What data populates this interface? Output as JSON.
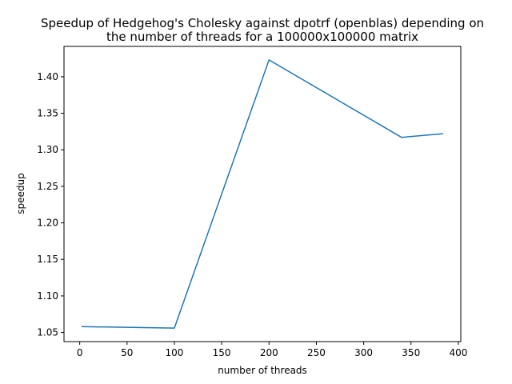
{
  "chart_data": {
    "type": "line",
    "title_lines": [
      "Speedup of Hedgehog's Cholesky against dpotrf (openblas) depending on",
      "the number of threads for a 100000x100000 matrix"
    ],
    "xlabel": "number of threads",
    "ylabel": "speedup",
    "xlim": [
      -16.6,
      402.6
    ],
    "ylim": [
      1.0375,
      1.4415
    ],
    "xticks": [
      0,
      50,
      100,
      150,
      200,
      250,
      300,
      350,
      400
    ],
    "xtick_labels": [
      "0",
      "50",
      "100",
      "150",
      "200",
      "250",
      "300",
      "350",
      "400"
    ],
    "yticks": [
      1.05,
      1.1,
      1.15,
      1.2,
      1.25,
      1.3,
      1.35,
      1.4
    ],
    "ytick_labels": [
      "1.05",
      "1.10",
      "1.15",
      "1.20",
      "1.25",
      "1.30",
      "1.35",
      "1.40"
    ],
    "grid": false,
    "legend": false,
    "series": [
      {
        "color": "#1f77b4",
        "x": [
          2,
          100,
          200,
          340,
          384
        ],
        "y": [
          1.058,
          1.056,
          1.423,
          1.317,
          1.322
        ]
      }
    ]
  }
}
